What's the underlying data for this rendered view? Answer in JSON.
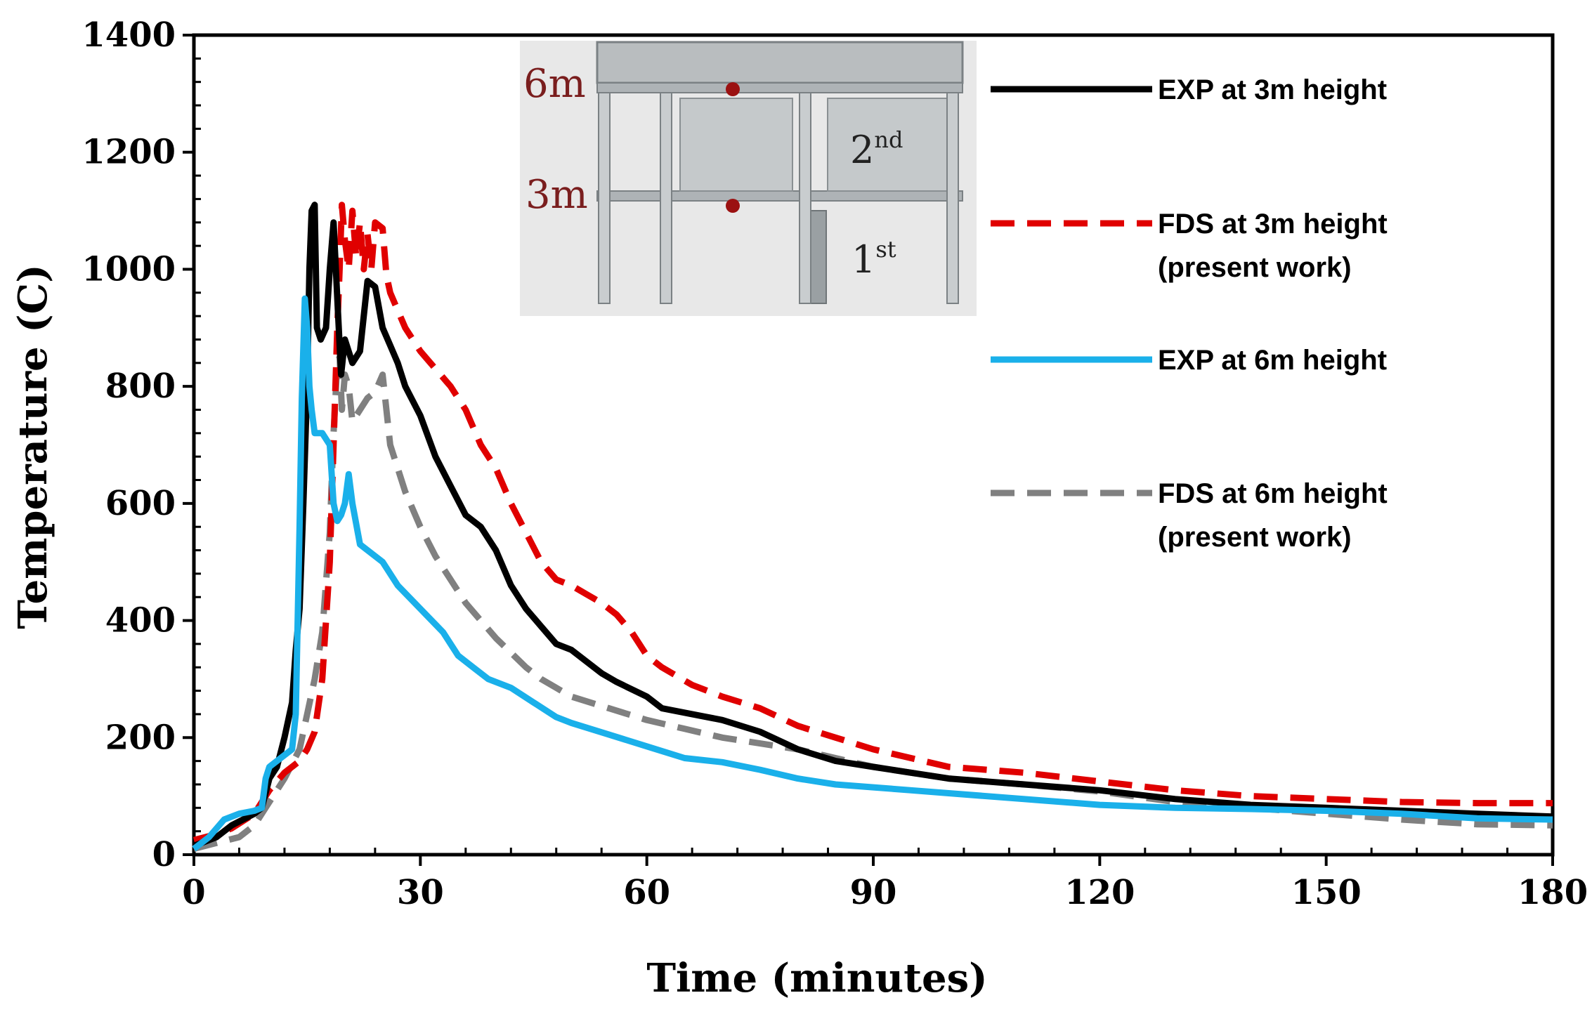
{
  "chart_data": {
    "type": "line",
    "title": "",
    "xlabel": "Time (minutes)",
    "ylabel": "Temperature (C)",
    "xlim": [
      0,
      180
    ],
    "ylim": [
      0,
      1400
    ],
    "xticks": [
      0,
      30,
      60,
      90,
      120,
      150,
      180
    ],
    "yticks": [
      0,
      200,
      400,
      600,
      800,
      1000,
      1200,
      1400
    ],
    "xtick_labels": [
      "0",
      "30",
      "60",
      "90",
      "120",
      "150",
      "180"
    ],
    "ytick_labels": [
      "0",
      "200",
      "400",
      "600",
      "800",
      "1000",
      "1200",
      "1400"
    ],
    "grid": false,
    "legend_position": "right",
    "series": [
      {
        "name": "EXP at 3m height",
        "name_lines": [
          "EXP at 3m height"
        ],
        "color": "#000000",
        "style": "solid",
        "points": [
          [
            0,
            15
          ],
          [
            3,
            30
          ],
          [
            5,
            50
          ],
          [
            8,
            70
          ],
          [
            9,
            80
          ],
          [
            10,
            130
          ],
          [
            11,
            150
          ],
          [
            12,
            200
          ],
          [
            13,
            260
          ],
          [
            13.5,
            350
          ],
          [
            14,
            420
          ],
          [
            14.5,
            600
          ],
          [
            15,
            800
          ],
          [
            15.3,
            1000
          ],
          [
            15.6,
            1100
          ],
          [
            16,
            1110
          ],
          [
            16.3,
            900
          ],
          [
            16.8,
            880
          ],
          [
            17.5,
            900
          ],
          [
            18,
            1000
          ],
          [
            18.5,
            1080
          ],
          [
            19,
            950
          ],
          [
            19.5,
            820
          ],
          [
            20,
            880
          ],
          [
            21,
            840
          ],
          [
            22,
            860
          ],
          [
            23,
            980
          ],
          [
            24,
            970
          ],
          [
            25,
            900
          ],
          [
            26,
            870
          ],
          [
            27,
            840
          ],
          [
            28,
            800
          ],
          [
            30,
            750
          ],
          [
            32,
            680
          ],
          [
            34,
            630
          ],
          [
            36,
            580
          ],
          [
            38,
            560
          ],
          [
            40,
            520
          ],
          [
            42,
            460
          ],
          [
            44,
            420
          ],
          [
            46,
            390
          ],
          [
            48,
            360
          ],
          [
            50,
            350
          ],
          [
            52,
            330
          ],
          [
            54,
            310
          ],
          [
            56,
            295
          ],
          [
            60,
            270
          ],
          [
            62,
            250
          ],
          [
            66,
            240
          ],
          [
            70,
            230
          ],
          [
            75,
            210
          ],
          [
            80,
            180
          ],
          [
            85,
            160
          ],
          [
            90,
            150
          ],
          [
            95,
            140
          ],
          [
            100,
            130
          ],
          [
            105,
            125
          ],
          [
            110,
            120
          ],
          [
            120,
            110
          ],
          [
            130,
            95
          ],
          [
            140,
            85
          ],
          [
            150,
            80
          ],
          [
            160,
            75
          ],
          [
            170,
            70
          ],
          [
            180,
            65
          ]
        ]
      },
      {
        "name": "FDS at 3m height (present work)",
        "name_lines": [
          "FDS at 3m height",
          "(present work)"
        ],
        "color": "#e00000",
        "style": "dashed",
        "points": [
          [
            0,
            25
          ],
          [
            3,
            35
          ],
          [
            5,
            45
          ],
          [
            8,
            70
          ],
          [
            10,
            110
          ],
          [
            12,
            140
          ],
          [
            14,
            160
          ],
          [
            15,
            180
          ],
          [
            16,
            210
          ],
          [
            17,
            300
          ],
          [
            18,
            500
          ],
          [
            18.5,
            700
          ],
          [
            19,
            900
          ],
          [
            19.3,
            1000
          ],
          [
            19.6,
            1110
          ],
          [
            20,
            1050
          ],
          [
            20.5,
            1000
          ],
          [
            21,
            1100
          ],
          [
            21.5,
            1020
          ],
          [
            22,
            1080
          ],
          [
            22.5,
            1000
          ],
          [
            23,
            1060
          ],
          [
            23.5,
            1000
          ],
          [
            24,
            1080
          ],
          [
            25,
            1070
          ],
          [
            25.5,
            990
          ],
          [
            26,
            960
          ],
          [
            27,
            930
          ],
          [
            28,
            900
          ],
          [
            30,
            860
          ],
          [
            32,
            830
          ],
          [
            34,
            800
          ],
          [
            36,
            760
          ],
          [
            38,
            700
          ],
          [
            40,
            660
          ],
          [
            42,
            600
          ],
          [
            44,
            550
          ],
          [
            46,
            500
          ],
          [
            48,
            470
          ],
          [
            50,
            460
          ],
          [
            52,
            445
          ],
          [
            54,
            430
          ],
          [
            56,
            410
          ],
          [
            58,
            380
          ],
          [
            60,
            340
          ],
          [
            62,
            320
          ],
          [
            64,
            305
          ],
          [
            66,
            290
          ],
          [
            70,
            270
          ],
          [
            75,
            250
          ],
          [
            80,
            220
          ],
          [
            85,
            200
          ],
          [
            90,
            180
          ],
          [
            95,
            165
          ],
          [
            100,
            150
          ],
          [
            105,
            145
          ],
          [
            110,
            140
          ],
          [
            120,
            125
          ],
          [
            130,
            110
          ],
          [
            140,
            100
          ],
          [
            150,
            95
          ],
          [
            160,
            90
          ],
          [
            170,
            88
          ],
          [
            180,
            88
          ]
        ]
      },
      {
        "name": "EXP at 6m height",
        "name_lines": [
          "EXP at 6m height"
        ],
        "color": "#1ab0ea",
        "style": "solid",
        "points": [
          [
            0,
            10
          ],
          [
            2,
            30
          ],
          [
            4,
            60
          ],
          [
            6,
            70
          ],
          [
            8,
            75
          ],
          [
            9,
            80
          ],
          [
            9.5,
            130
          ],
          [
            10,
            150
          ],
          [
            12,
            170
          ],
          [
            13,
            180
          ],
          [
            13.5,
            240
          ],
          [
            14,
            560
          ],
          [
            14.3,
            780
          ],
          [
            14.7,
            950
          ],
          [
            15,
            900
          ],
          [
            15.3,
            800
          ],
          [
            15.6,
            760
          ],
          [
            16,
            720
          ],
          [
            17,
            720
          ],
          [
            18,
            700
          ],
          [
            18.5,
            600
          ],
          [
            19,
            570
          ],
          [
            19.5,
            580
          ],
          [
            20,
            600
          ],
          [
            20.5,
            650
          ],
          [
            21,
            600
          ],
          [
            22,
            530
          ],
          [
            25,
            500
          ],
          [
            27,
            460
          ],
          [
            30,
            420
          ],
          [
            33,
            380
          ],
          [
            35,
            340
          ],
          [
            37,
            320
          ],
          [
            39,
            300
          ],
          [
            42,
            285
          ],
          [
            45,
            260
          ],
          [
            48,
            235
          ],
          [
            50,
            225
          ],
          [
            55,
            205
          ],
          [
            60,
            185
          ],
          [
            65,
            165
          ],
          [
            70,
            158
          ],
          [
            75,
            145
          ],
          [
            80,
            130
          ],
          [
            85,
            120
          ],
          [
            90,
            115
          ],
          [
            95,
            110
          ],
          [
            100,
            105
          ],
          [
            110,
            95
          ],
          [
            120,
            85
          ],
          [
            130,
            80
          ],
          [
            140,
            78
          ],
          [
            150,
            75
          ],
          [
            160,
            70
          ],
          [
            170,
            62
          ],
          [
            180,
            60
          ]
        ]
      },
      {
        "name": "FDS at 6m height (present work)",
        "name_lines": [
          "FDS at 6m height",
          "(present work)"
        ],
        "color": "#808080",
        "style": "dashed",
        "points": [
          [
            0,
            10
          ],
          [
            3,
            20
          ],
          [
            6,
            30
          ],
          [
            8,
            50
          ],
          [
            10,
            90
          ],
          [
            12,
            130
          ],
          [
            14,
            180
          ],
          [
            15,
            240
          ],
          [
            16,
            300
          ],
          [
            17,
            380
          ],
          [
            18,
            550
          ],
          [
            18.5,
            720
          ],
          [
            19,
            840
          ],
          [
            19.3,
            850
          ],
          [
            19.6,
            760
          ],
          [
            20,
            820
          ],
          [
            20.5,
            800
          ],
          [
            21,
            740
          ],
          [
            22,
            760
          ],
          [
            23,
            780
          ],
          [
            24,
            790
          ],
          [
            25,
            820
          ],
          [
            26,
            700
          ],
          [
            27,
            660
          ],
          [
            28,
            620
          ],
          [
            30,
            560
          ],
          [
            32,
            510
          ],
          [
            34,
            470
          ],
          [
            36,
            430
          ],
          [
            38,
            400
          ],
          [
            40,
            370
          ],
          [
            42,
            345
          ],
          [
            44,
            320
          ],
          [
            46,
            300
          ],
          [
            48,
            285
          ],
          [
            50,
            270
          ],
          [
            55,
            250
          ],
          [
            60,
            230
          ],
          [
            65,
            215
          ],
          [
            70,
            200
          ],
          [
            75,
            190
          ],
          [
            80,
            180
          ],
          [
            85,
            165
          ],
          [
            90,
            150
          ],
          [
            95,
            140
          ],
          [
            100,
            130
          ],
          [
            105,
            125
          ],
          [
            110,
            120
          ],
          [
            120,
            108
          ],
          [
            130,
            90
          ],
          [
            140,
            80
          ],
          [
            150,
            70
          ],
          [
            160,
            60
          ],
          [
            170,
            52
          ],
          [
            180,
            50
          ]
        ]
      }
    ],
    "inset_labels": {
      "height_top": "6m",
      "height_mid": "3m",
      "floor_2_num": "2",
      "floor_2_sup": "nd",
      "floor_1_num": "1",
      "floor_1_sup": "st"
    }
  }
}
